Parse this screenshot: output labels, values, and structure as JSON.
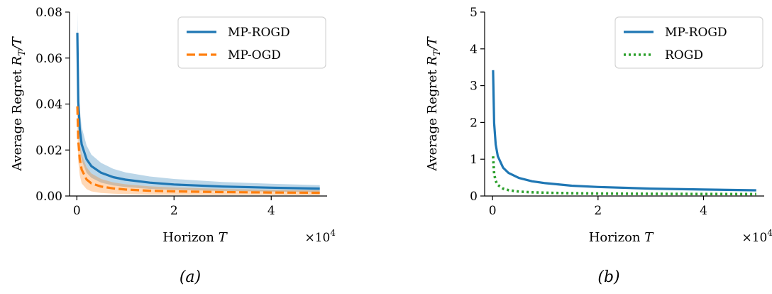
{
  "captions": [
    "(a)",
    "(b)"
  ],
  "chart_data": [
    {
      "type": "line",
      "panel": "(a)",
      "xlabel": "Horizon T",
      "ylabel": "Average Regret R_T/T",
      "x_multiplier_label": "×10^4",
      "xlim": [
        -1500,
        51500
      ],
      "ylim": [
        0,
        0.08
      ],
      "xticks": [
        0,
        20000,
        40000
      ],
      "xtick_labels": [
        "0",
        "2",
        "4"
      ],
      "yticks": [
        0,
        0.02,
        0.04,
        0.06,
        0.08
      ],
      "ytick_labels": [
        "0.00",
        "0.02",
        "0.04",
        "0.06",
        "0.08"
      ],
      "legend_position": "top-right",
      "series": [
        {
          "name": "MP-ROGD",
          "color": "#1f77b4",
          "style": "solid",
          "x": [
            100,
            300,
            600,
            1000,
            2000,
            3000,
            5000,
            7500,
            10000,
            15000,
            20000,
            30000,
            40000,
            50000
          ],
          "y": [
            0.071,
            0.041,
            0.029,
            0.0225,
            0.016,
            0.013,
            0.0101,
            0.0082,
            0.0071,
            0.0058,
            0.005,
            0.0041,
            0.0036,
            0.0032
          ],
          "band_lower": [
            0.06,
            0.031,
            0.021,
            0.0155,
            0.0101,
            0.0079,
            0.0058,
            0.0046,
            0.0039,
            0.0031,
            0.0027,
            0.0022,
            0.0019,
            0.0017
          ],
          "band_upper": [
            0.08,
            0.052,
            0.038,
            0.03,
            0.022,
            0.018,
            0.0144,
            0.0118,
            0.0103,
            0.0085,
            0.0074,
            0.0061,
            0.0053,
            0.0047
          ]
        },
        {
          "name": "MP-OGD",
          "color": "#ff7f0e",
          "style": "dashed",
          "x": [
            100,
            300,
            600,
            1000,
            2000,
            3000,
            5000,
            7500,
            10000,
            15000,
            20000,
            30000,
            40000,
            50000
          ],
          "y": [
            0.039,
            0.024,
            0.016,
            0.0115,
            0.0072,
            0.0055,
            0.0041,
            0.0033,
            0.0028,
            0.0023,
            0.002,
            0.0017,
            0.0015,
            0.0014
          ],
          "band_lower": [
            0.03,
            0.015,
            0.009,
            0.0055,
            0.003,
            0.002,
            0.0013,
            0.001,
            0.0008,
            0.0006,
            0.0005,
            0.0004,
            0.0004,
            0.0003
          ],
          "band_upper": [
            0.044,
            0.031,
            0.023,
            0.018,
            0.0125,
            0.0098,
            0.0074,
            0.0059,
            0.0051,
            0.0042,
            0.0037,
            0.0031,
            0.0027,
            0.0025
          ]
        }
      ]
    },
    {
      "type": "line",
      "panel": "(b)",
      "xlabel": "Horizon T",
      "ylabel": "Average Regret R_T/T",
      "x_multiplier_label": "×10^4",
      "xlim": [
        -1500,
        51500
      ],
      "ylim": [
        0,
        5
      ],
      "xticks": [
        0,
        20000,
        40000
      ],
      "xtick_labels": [
        "0",
        "2",
        "4"
      ],
      "yticks": [
        0,
        1,
        2,
        3,
        4,
        5
      ],
      "ytick_labels": [
        "0",
        "1",
        "2",
        "3",
        "4",
        "5"
      ],
      "legend_position": "top-right",
      "series": [
        {
          "name": "MP-ROGD",
          "color": "#1f77b4",
          "style": "solid",
          "x": [
            100,
            300,
            600,
            1000,
            2000,
            3000,
            5000,
            7500,
            10000,
            15000,
            20000,
            30000,
            40000,
            50000
          ],
          "y": [
            3.42,
            1.98,
            1.4,
            1.08,
            0.77,
            0.63,
            0.49,
            0.4,
            0.35,
            0.28,
            0.245,
            0.2,
            0.175,
            0.155
          ]
        },
        {
          "name": "ROGD",
          "color": "#2ca02c",
          "style": "dotted",
          "x": [
            100,
            300,
            600,
            1000,
            2000,
            3000,
            5000,
            7500,
            10000,
            15000,
            20000,
            30000,
            40000,
            50000
          ],
          "y": [
            1.08,
            0.6,
            0.41,
            0.3,
            0.2,
            0.16,
            0.12,
            0.1,
            0.088,
            0.075,
            0.068,
            0.06,
            0.055,
            0.052
          ]
        }
      ]
    }
  ]
}
